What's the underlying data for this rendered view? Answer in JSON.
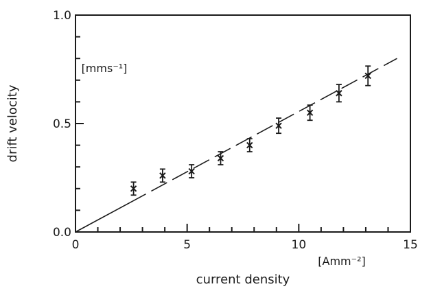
{
  "chart_data": {
    "type": "scatter",
    "title": "",
    "xlabel": "current density",
    "ylabel": "drift velocity",
    "x_unit": "[Amm⁻²]",
    "y_unit": "[mms⁻¹]",
    "xlim": [
      0,
      15
    ],
    "ylim": [
      0.0,
      1.0
    ],
    "x_major_ticks": [
      0,
      5,
      10,
      15
    ],
    "x_tick_labels": [
      "0",
      "5",
      "10",
      "15"
    ],
    "y_major_ticks": [
      0.0,
      0.5,
      1.0
    ],
    "y_tick_labels": [
      "0.0",
      "0.5",
      "1.0"
    ],
    "x_minor_step": 1,
    "y_minor_step": 0.1,
    "grid": false,
    "series": [
      {
        "marker": "x",
        "x": [
          2.6,
          3.9,
          5.2,
          6.5,
          7.8,
          9.1,
          10.5,
          11.8,
          13.1
        ],
        "y": [
          0.2,
          0.26,
          0.28,
          0.34,
          0.4,
          0.49,
          0.55,
          0.64,
          0.72
        ],
        "error": [
          0.03,
          0.03,
          0.03,
          0.03,
          0.03,
          0.035,
          0.035,
          0.04,
          0.045
        ]
      }
    ],
    "fit_line": {
      "style": "dashed",
      "from": [
        0,
        0
      ],
      "to": [
        14.4,
        0.8
      ]
    },
    "colors": {
      "ink": "#1a1a1a",
      "background": "#ffffff"
    }
  }
}
